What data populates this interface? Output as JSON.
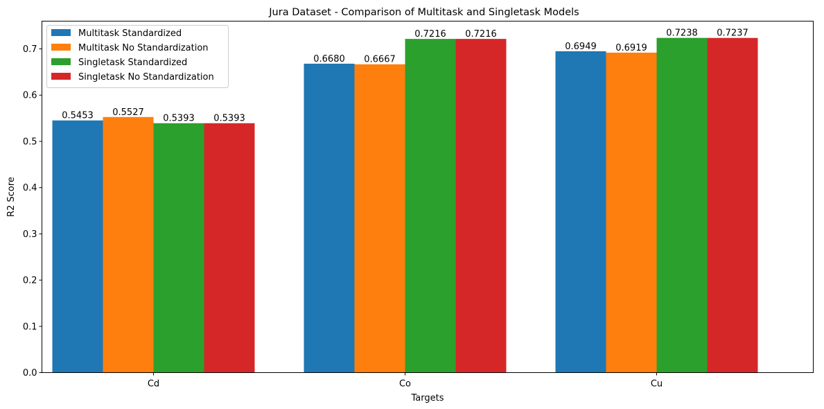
{
  "chart_data": {
    "type": "bar",
    "title": "Jura Dataset - Comparison of Multitask and Singletask Models",
    "xlabel": "Targets",
    "ylabel": "R2 Score",
    "categories": [
      "Cd",
      "Co",
      "Cu"
    ],
    "ylim": [
      0,
      0.76
    ],
    "yticks": [
      "0.0",
      "0.1",
      "0.2",
      "0.3",
      "0.4",
      "0.5",
      "0.6",
      "0.7"
    ],
    "grid": false,
    "legend_position": "top-left",
    "series": [
      {
        "name": "Multitask Standardized",
        "color": "#1f77b4",
        "values": [
          0.5453,
          0.668,
          0.6949
        ],
        "labels": [
          "0.5453",
          "0.6680",
          "0.6949"
        ]
      },
      {
        "name": "Multitask No Standardization",
        "color": "#ff7f0e",
        "values": [
          0.5527,
          0.6667,
          0.6919
        ],
        "labels": [
          "0.5527",
          "0.6667",
          "0.6919"
        ]
      },
      {
        "name": "Singletask Standardized",
        "color": "#2ca02c",
        "values": [
          0.5393,
          0.7216,
          0.7238
        ],
        "labels": [
          "0.5393",
          "0.7216",
          "0.7238"
        ]
      },
      {
        "name": "Singletask No Standardization",
        "color": "#d62728",
        "values": [
          0.5393,
          0.7216,
          0.7237
        ],
        "labels": [
          "0.5393",
          "0.7216",
          "0.7237"
        ]
      }
    ]
  }
}
